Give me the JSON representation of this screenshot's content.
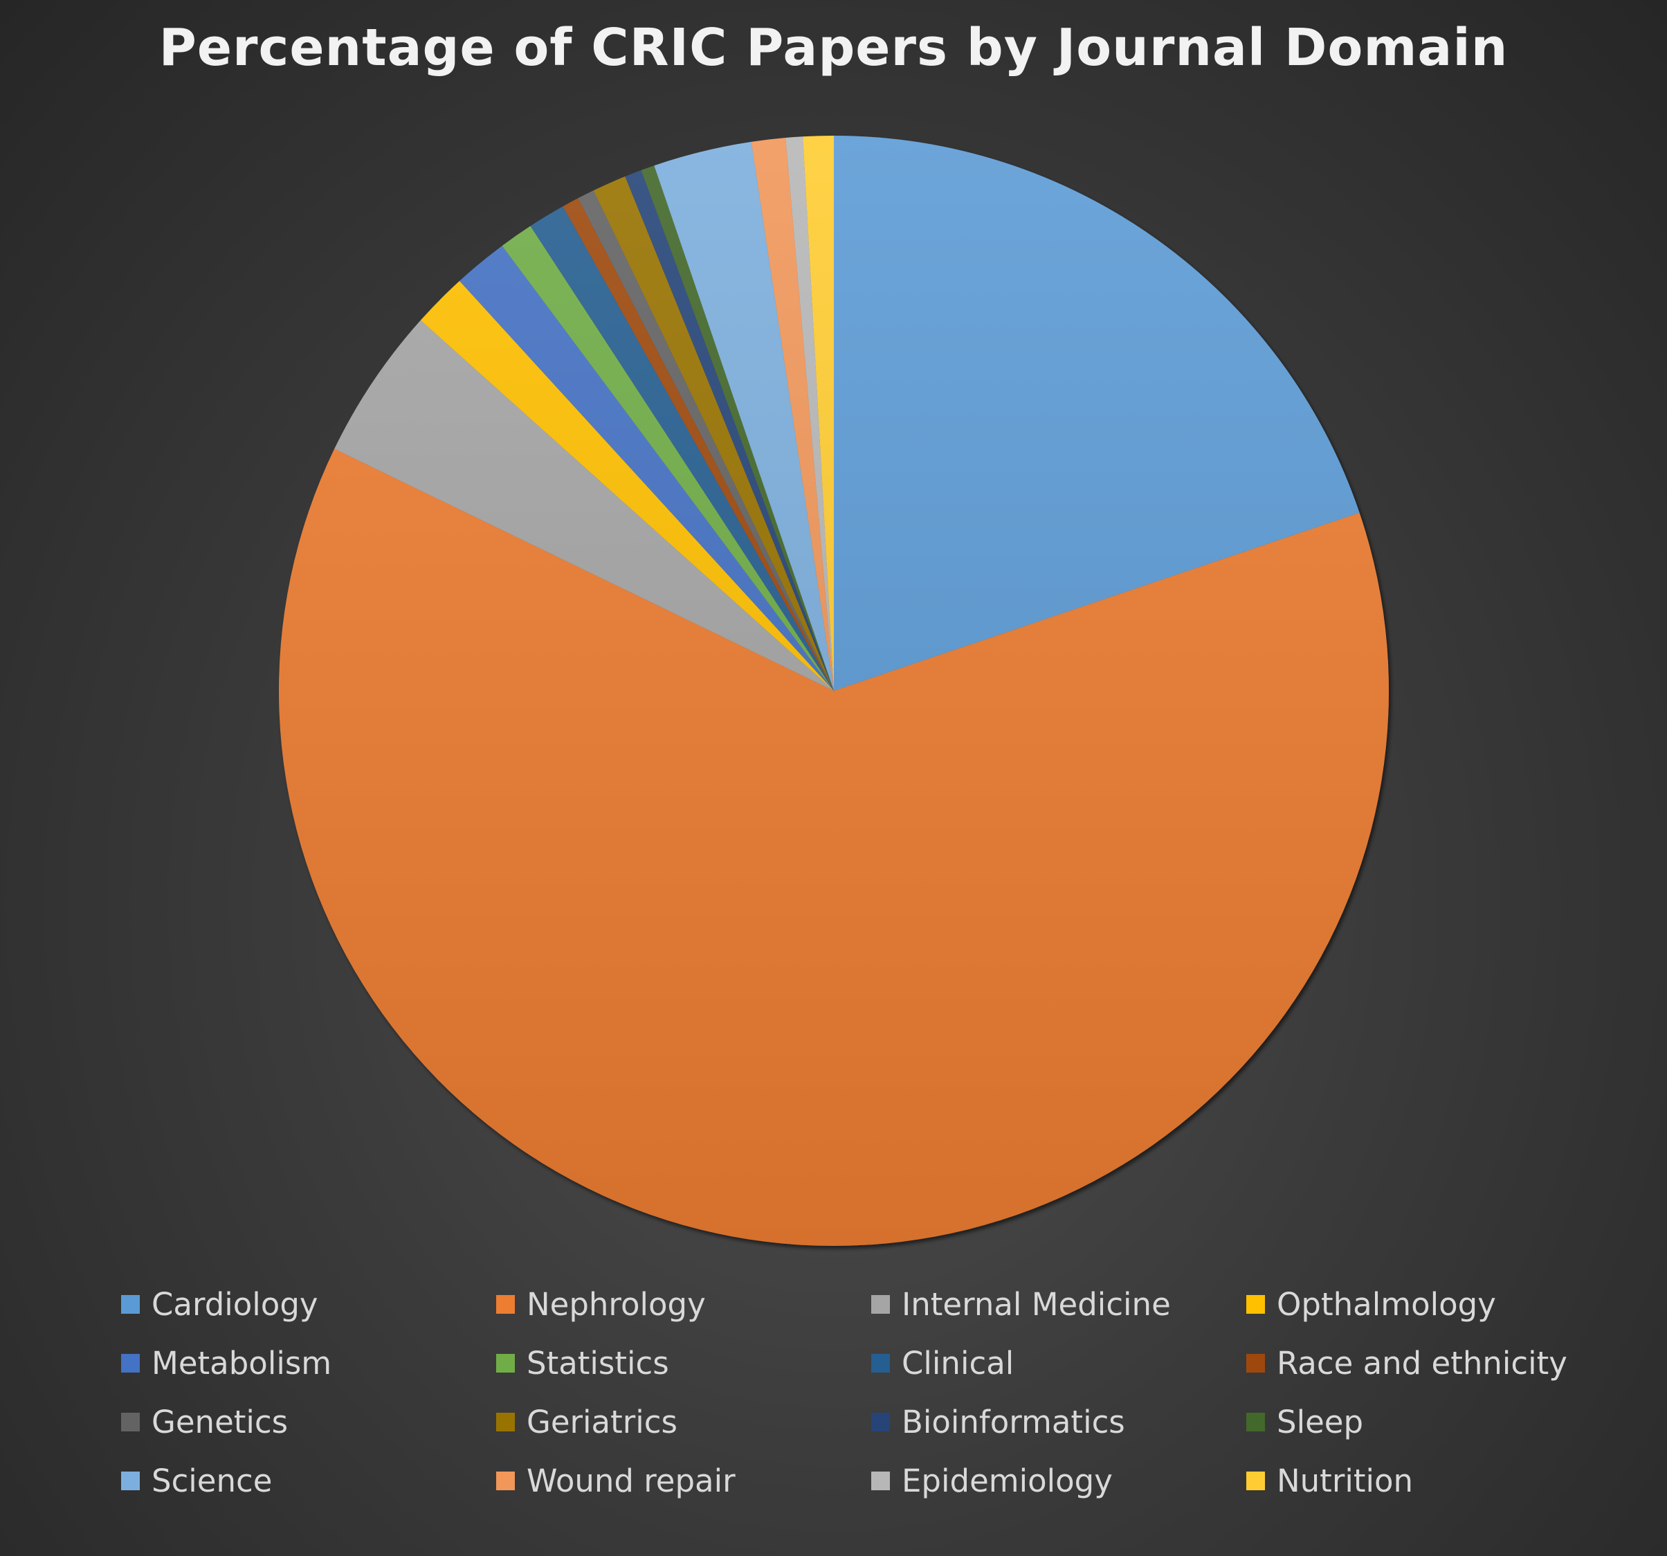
{
  "chart_data": {
    "type": "pie",
    "title": "Percentage of CRIC Papers by Journal Domain",
    "legend_position": "bottom",
    "slices": [
      {
        "label": "Cardiology",
        "value": 20.0,
        "color": "#5b9bd5"
      },
      {
        "label": "Nephrology",
        "value": 63.0,
        "color": "#ed7d31"
      },
      {
        "label": "Internal Medicine",
        "value": 4.5,
        "color": "#a5a5a5"
      },
      {
        "label": "Opthalmology",
        "value": 1.6,
        "color": "#ffc000"
      },
      {
        "label": "Metabolism",
        "value": 1.6,
        "color": "#4472c4"
      },
      {
        "label": "Statistics",
        "value": 1.0,
        "color": "#70ad47"
      },
      {
        "label": "Clinical",
        "value": 1.1,
        "color": "#255e91"
      },
      {
        "label": "Race and ethnicity",
        "value": 0.5,
        "color": "#9e480e"
      },
      {
        "label": "Genetics",
        "value": 0.5,
        "color": "#636363"
      },
      {
        "label": "Geriatrics",
        "value": 1.0,
        "color": "#997300"
      },
      {
        "label": "Bioinformatics",
        "value": 0.5,
        "color": "#264478"
      },
      {
        "label": "Sleep",
        "value": 0.4,
        "color": "#43682b"
      },
      {
        "label": "Science",
        "value": 2.9,
        "color": "#7cafdd"
      },
      {
        "label": "Wound repair",
        "value": 1.0,
        "color": "#f1975a"
      },
      {
        "label": "Epidemiology",
        "value": 0.5,
        "color": "#b7b7b7"
      },
      {
        "label": "Nutrition",
        "value": 0.9,
        "color": "#ffcd33"
      }
    ]
  }
}
